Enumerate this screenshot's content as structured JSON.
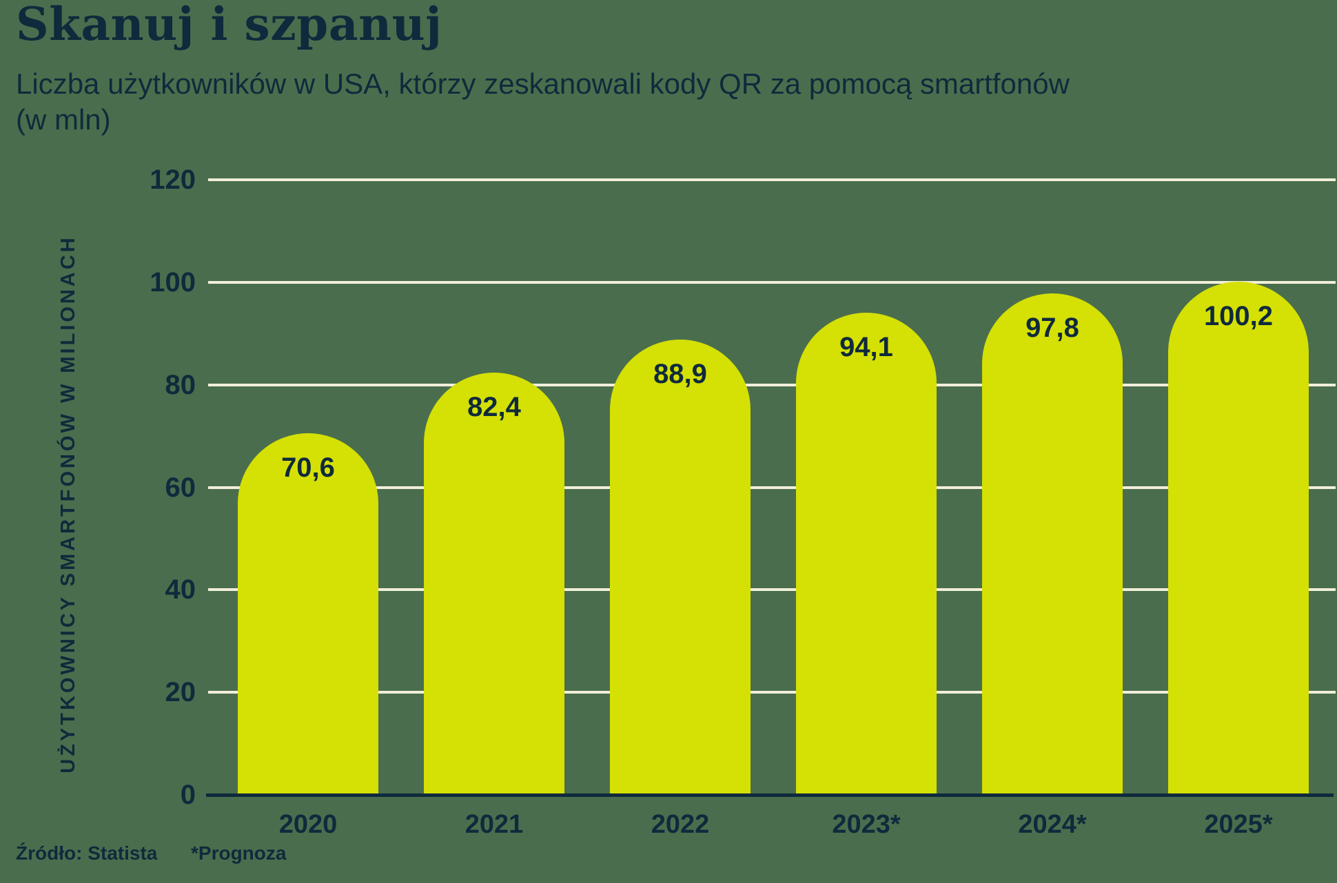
{
  "header": {
    "title": "Skanuj i szpanuj",
    "subtitle_line1": "Liczba użytkowników w USA, którzy zeskanowali kody QR za pomocą smartfonów",
    "subtitle_line2": "(w mln)"
  },
  "chart_data": {
    "type": "bar",
    "title": "Skanuj i szpanuj",
    "subtitle": "Liczba użytkowników w USA, którzy zeskanowali kody QR za pomocą smartfonów (w mln)",
    "categories": [
      "2020",
      "2021",
      "2022",
      "2023*",
      "2024*",
      "2025*"
    ],
    "values": [
      70.6,
      82.4,
      88.9,
      94.1,
      97.8,
      100.2
    ],
    "value_labels": [
      "70,6",
      "82,4",
      "88,9",
      "94,1",
      "97,8",
      "100,2"
    ],
    "xlabel": "",
    "ylabel": "UŻYTKOWNICY SMARTFONÓW W MILIONACH",
    "ylim": [
      0,
      120
    ],
    "y_ticks": [
      0,
      20,
      40,
      60,
      80,
      100,
      120
    ],
    "grid": true,
    "legend": "none",
    "colors": {
      "background": "#4a6e4d",
      "bar": "#d5e005",
      "gridline": "#f2efd9",
      "text": "#0f2a3c"
    }
  },
  "footer": {
    "source": "Źródło: Statista",
    "note": "*Prognoza"
  }
}
